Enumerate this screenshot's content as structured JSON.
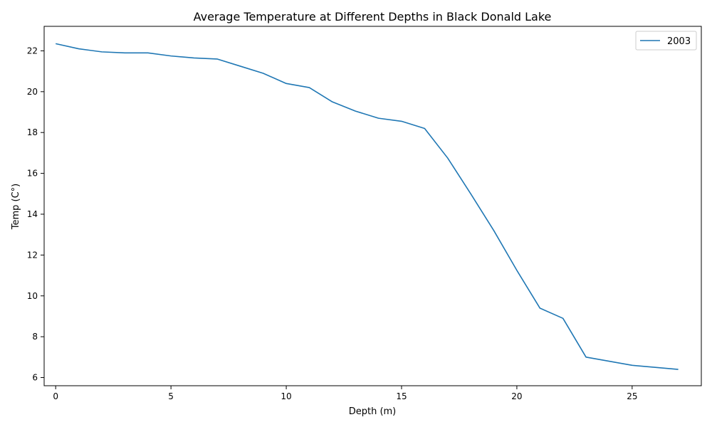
{
  "chart_data": {
    "type": "line",
    "title": "Average Temperature at Different Depths in Black Donald Lake",
    "xlabel": "Depth (m)",
    "ylabel": "Temp (C°)",
    "xlim": [
      -0.5,
      28
    ],
    "ylim": [
      5.6,
      23.2
    ],
    "xticks": [
      0,
      5,
      10,
      15,
      20,
      25
    ],
    "yticks": [
      6,
      8,
      10,
      12,
      14,
      16,
      18,
      20,
      22
    ],
    "grid": false,
    "legend_position": "top-right",
    "series": [
      {
        "name": "2003",
        "color": "#1f77b4",
        "x": [
          0,
          1,
          2,
          3,
          4,
          5,
          6,
          7,
          8,
          9,
          10,
          11,
          12,
          13,
          14,
          15,
          16,
          17,
          18,
          19,
          20,
          21,
          22,
          23,
          24,
          25,
          26,
          27
        ],
        "y": [
          22.35,
          22.1,
          21.95,
          21.9,
          21.9,
          21.75,
          21.65,
          21.6,
          21.25,
          20.9,
          20.4,
          20.2,
          19.5,
          19.05,
          18.7,
          18.55,
          18.2,
          16.75,
          15.0,
          13.2,
          11.25,
          9.4,
          8.9,
          7.0,
          6.8,
          6.6,
          6.5,
          6.4
        ]
      }
    ]
  }
}
